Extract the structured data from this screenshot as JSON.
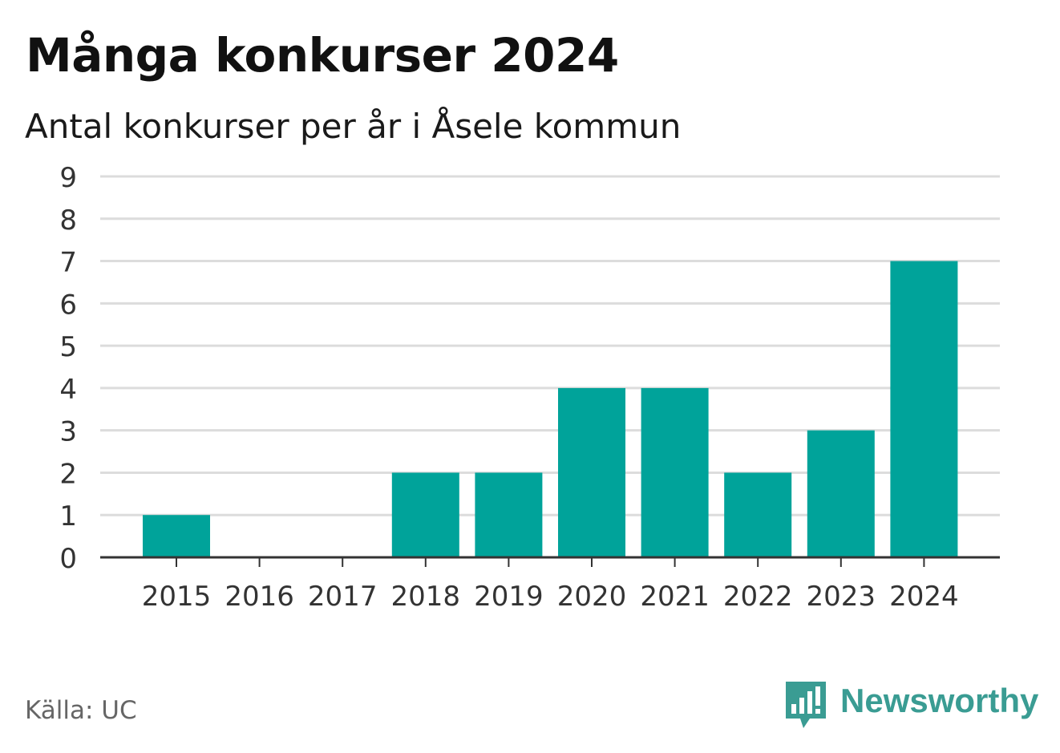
{
  "header": {
    "title": "Många konkurser 2024",
    "subtitle": "Antal konkurser per år i Åsele kommun"
  },
  "footer": {
    "source": "Källa: UC",
    "brand": "Newsworthy",
    "brand_icon": "newsworthy-logo-icon"
  },
  "colors": {
    "bar": "#00a39a",
    "grid": "#dcdcdc",
    "axis": "#333333",
    "brand": "#3a9c93"
  },
  "chart_data": {
    "type": "bar",
    "title": "Många konkurser 2024",
    "subtitle": "Antal konkurser per år i Åsele kommun",
    "categories": [
      "2015",
      "2016",
      "2017",
      "2018",
      "2019",
      "2020",
      "2021",
      "2022",
      "2023",
      "2024"
    ],
    "values": [
      1,
      0,
      0,
      2,
      2,
      4,
      4,
      2,
      3,
      7
    ],
    "ylim": [
      0,
      9
    ],
    "yticks": [
      "0",
      "1",
      "2",
      "3",
      "4",
      "5",
      "6",
      "7",
      "8",
      "9"
    ],
    "xlabel": "",
    "ylabel": "",
    "grid": true
  }
}
